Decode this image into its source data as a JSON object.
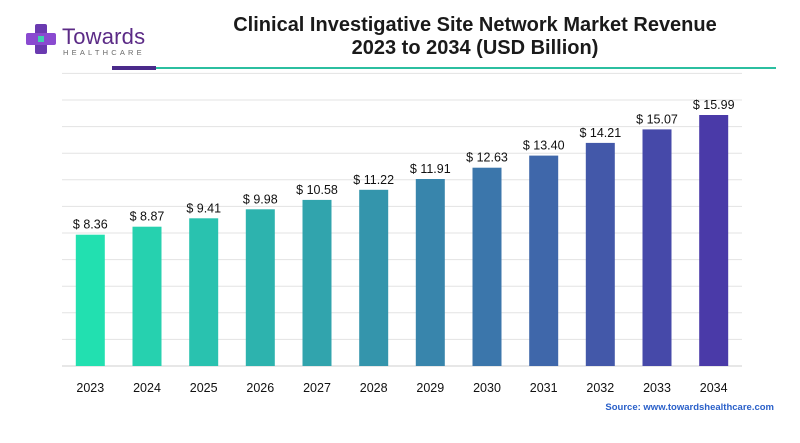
{
  "brand": {
    "name": "Towards",
    "sub": "HEALTHCARE"
  },
  "title_line1": "Clinical Investigative Site Network Market Revenue",
  "title_line2": "2023 to 2034 (USD Billion)",
  "source": "Source: www.towardshealthcare.com",
  "colors": {
    "bar_start": "#22e0b0",
    "bar_end": "#4a3aa8",
    "accent_rule": "#4a2a8a",
    "line_rule": "#2bbfa0",
    "gridline": "#e3e3e3"
  },
  "chart_data": {
    "type": "bar",
    "categories": [
      "2023",
      "2024",
      "2025",
      "2026",
      "2027",
      "2028",
      "2029",
      "2030",
      "2031",
      "2032",
      "2033",
      "2034"
    ],
    "values": [
      8.36,
      8.87,
      9.41,
      9.98,
      10.58,
      11.22,
      11.91,
      12.63,
      13.4,
      14.21,
      15.07,
      15.99
    ],
    "value_labels": [
      "$ 8.36",
      "$ 8.87",
      "$ 9.41",
      "$ 9.98",
      "$ 10.58",
      "$ 11.22",
      "$ 11.91",
      "$ 12.63",
      "$ 13.40",
      "$ 14.21",
      "$ 15.07",
      "$ 15.99"
    ],
    "title": "Clinical Investigative Site Network Market Revenue 2023 to 2034 (USD Billion)",
    "xlabel": "",
    "ylabel": "",
    "ylim": [
      0,
      20
    ],
    "grid": true,
    "y_ticks_shown": false,
    "legend": false
  }
}
